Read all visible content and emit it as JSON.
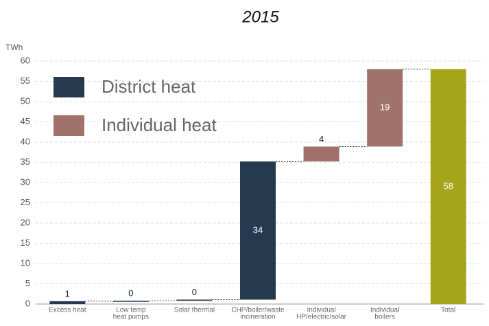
{
  "chart_data": {
    "type": "waterfall",
    "title": "2015",
    "y_axis_label": "TWh",
    "categories": [
      [
        "Excess heat"
      ],
      [
        "Low temp",
        "heat pumps"
      ],
      [
        "Solar thermal"
      ],
      [
        "CHP/boiler/waste",
        "incineration"
      ],
      [
        "Individual",
        "HP/electric/solar"
      ],
      [
        "Individual",
        "boilers"
      ],
      [
        "Total"
      ]
    ],
    "values": [
      0.7,
      0.1,
      0.3,
      34.1,
      3.7,
      19.1,
      58
    ],
    "value_labels": [
      "1",
      "0",
      "0",
      "34",
      "4",
      "19",
      "58"
    ],
    "is_total": [
      false,
      false,
      false,
      false,
      false,
      false,
      true
    ],
    "colors": [
      "#253a4e",
      "#253a4e",
      "#253a4e",
      "#253a4e",
      "#a0736a",
      "#a0736a",
      "#a5a51c"
    ],
    "legend": [
      {
        "name": "District heat",
        "color": "#253a4e"
      },
      {
        "name": "Individual heat",
        "color": "#a0736a"
      }
    ],
    "ylim": [
      0,
      60
    ],
    "yticks": [
      0,
      5,
      10,
      15,
      20,
      25,
      30,
      35,
      40,
      45,
      50,
      55,
      60
    ],
    "grid": true
  }
}
